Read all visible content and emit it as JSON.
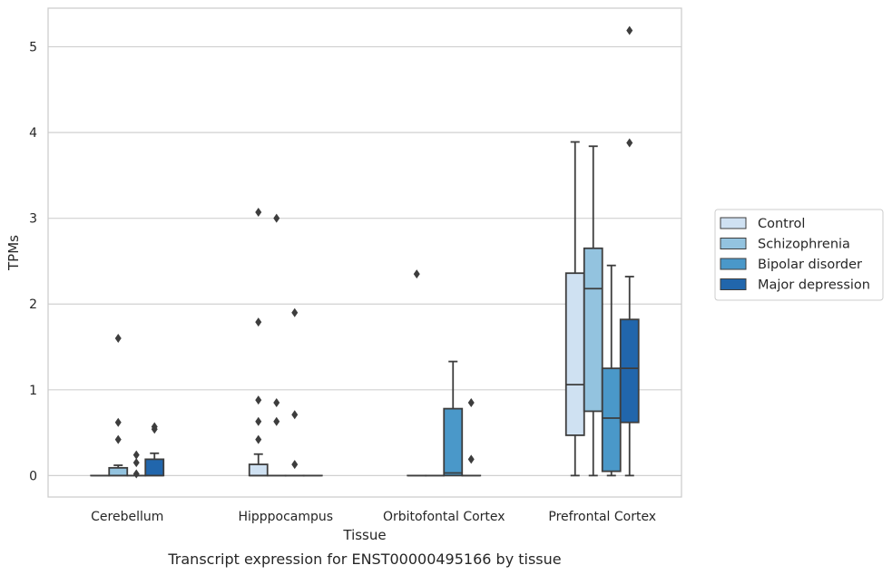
{
  "chart_data": {
    "type": "box",
    "caption": "Transcript expression for ENST00000495166 by tissue",
    "xlabel": "Tissue",
    "ylabel": "TPMs",
    "ylim": [
      -0.25,
      5.45
    ],
    "yticks": [
      0,
      1,
      2,
      3,
      4,
      5
    ],
    "grid": true,
    "legend_position": "right",
    "categories": [
      "Cerebellum",
      "Hipppocampus",
      "Orbitofontal Cortex",
      "Prefrontal Cortex"
    ],
    "series": [
      {
        "name": "Control",
        "color": "#cfe1f2",
        "boxes": [
          {
            "whisker_low": 0,
            "q1": 0,
            "median": 0,
            "q3": 0,
            "whisker_high": 0,
            "outliers": []
          },
          {
            "whisker_low": 0,
            "q1": 0,
            "median": 0,
            "q3": 0.13,
            "whisker_high": 0.25,
            "outliers": [
              0.42,
              0.63,
              0.88,
              1.79,
              3.07
            ]
          },
          {
            "whisker_low": 0,
            "q1": 0,
            "median": 0,
            "q3": 0,
            "whisker_high": 0,
            "outliers": [
              2.35
            ]
          },
          {
            "whisker_low": 0,
            "q1": 0.47,
            "median": 1.06,
            "q3": 2.36,
            "whisker_high": 3.89,
            "outliers": []
          }
        ]
      },
      {
        "name": "Schizophrenia",
        "color": "#93c3df",
        "boxes": [
          {
            "whisker_low": 0,
            "q1": 0,
            "median": 0,
            "q3": 0.09,
            "whisker_high": 0.12,
            "outliers": [
              0.42,
              0.62,
              1.6
            ]
          },
          {
            "whisker_low": 0,
            "q1": 0,
            "median": 0,
            "q3": 0,
            "whisker_high": 0,
            "outliers": [
              0.63,
              0.85,
              3.0
            ]
          },
          {
            "whisker_low": 0,
            "q1": 0,
            "median": 0,
            "q3": 0,
            "whisker_high": 0,
            "outliers": []
          },
          {
            "whisker_low": 0,
            "q1": 0.75,
            "median": 2.18,
            "q3": 2.65,
            "whisker_high": 3.84,
            "outliers": []
          }
        ]
      },
      {
        "name": "Bipolar disorder",
        "color": "#4a98c9",
        "boxes": [
          {
            "whisker_low": 0,
            "q1": 0,
            "median": 0,
            "q3": 0,
            "whisker_high": 0,
            "outliers": [
              0.02,
              0.15,
              0.24
            ]
          },
          {
            "whisker_low": 0,
            "q1": 0,
            "median": 0,
            "q3": 0,
            "whisker_high": 0,
            "outliers": [
              0.13,
              0.71,
              1.9
            ]
          },
          {
            "whisker_low": 0,
            "q1": 0,
            "median": 0.03,
            "q3": 0.78,
            "whisker_high": 1.33,
            "outliers": []
          },
          {
            "whisker_low": 0,
            "q1": 0.05,
            "median": 0.67,
            "q3": 1.25,
            "whisker_high": 2.45,
            "outliers": []
          }
        ]
      },
      {
        "name": "Major depression",
        "color": "#2166ac",
        "boxes": [
          {
            "whisker_low": 0,
            "q1": 0,
            "median": 0,
            "q3": 0.19,
            "whisker_high": 0.26,
            "outliers": [
              0.54,
              0.57
            ]
          },
          {
            "whisker_low": 0,
            "q1": 0,
            "median": 0,
            "q3": 0,
            "whisker_high": 0,
            "outliers": []
          },
          {
            "whisker_low": 0,
            "q1": 0,
            "median": 0,
            "q3": 0,
            "whisker_high": 0,
            "outliers": [
              0.19,
              0.85
            ]
          },
          {
            "whisker_low": 0,
            "q1": 0.62,
            "median": 1.25,
            "q3": 1.82,
            "whisker_high": 2.32,
            "outliers": [
              3.88,
              5.19
            ]
          }
        ]
      }
    ]
  }
}
